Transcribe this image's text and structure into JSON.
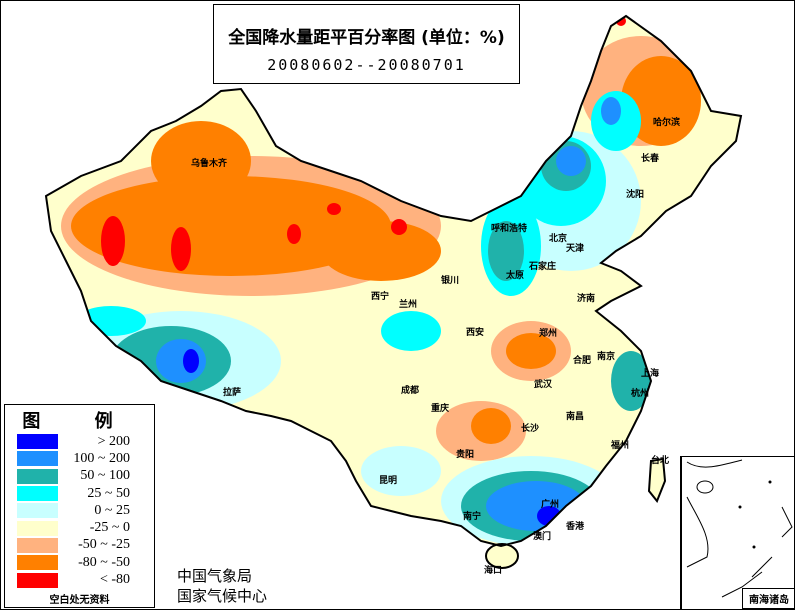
{
  "title": "全国降水量距平百分率图 (单位：%)",
  "period": "20080602--20080701",
  "legend": {
    "title": "图 例",
    "items": [
      {
        "label": "> 200",
        "color": "#0000ff"
      },
      {
        "label": "100 ~ 200",
        "color": "#1e90ff"
      },
      {
        "label": "50 ~ 100",
        "color": "#20b2aa"
      },
      {
        "label": "25 ~ 50",
        "color": "#00ffff"
      },
      {
        "label": "0 ~ 25",
        "color": "#c8ffff"
      },
      {
        "label": "-25 ~ 0",
        "color": "#ffffcc"
      },
      {
        "label": "-50 ~ -25",
        "color": "#ffb27f"
      },
      {
        "label": "-80 ~ -50",
        "color": "#ff8000"
      },
      {
        "label": "< -80",
        "color": "#ff0000"
      }
    ],
    "no_data": "空白处无资料"
  },
  "agency": [
    "中国气象局",
    "国家气候中心"
  ],
  "inset_label": "南海诸岛",
  "cities": [
    {
      "name": "乌鲁木齐"
    },
    {
      "name": "哈尔滨"
    },
    {
      "name": "长春"
    },
    {
      "name": "沈阳"
    },
    {
      "name": "呼和浩特"
    },
    {
      "name": "北京"
    },
    {
      "name": "天津"
    },
    {
      "name": "太原"
    },
    {
      "name": "石家庄"
    },
    {
      "name": "济南"
    },
    {
      "name": "银川"
    },
    {
      "name": "西宁"
    },
    {
      "name": "兰州"
    },
    {
      "name": "西安"
    },
    {
      "name": "郑州"
    },
    {
      "name": "合肥"
    },
    {
      "name": "南京"
    },
    {
      "name": "上海"
    },
    {
      "name": "杭州"
    },
    {
      "name": "武汉"
    },
    {
      "name": "南昌"
    },
    {
      "name": "长沙"
    },
    {
      "name": "福州"
    },
    {
      "name": "台北"
    },
    {
      "name": "拉萨"
    },
    {
      "name": "成都"
    },
    {
      "name": "重庆"
    },
    {
      "name": "贵阳"
    },
    {
      "name": "昆明"
    },
    {
      "name": "南宁"
    },
    {
      "name": "广州"
    },
    {
      "name": "香港"
    },
    {
      "name": "澳门"
    },
    {
      "name": "海口"
    }
  ]
}
